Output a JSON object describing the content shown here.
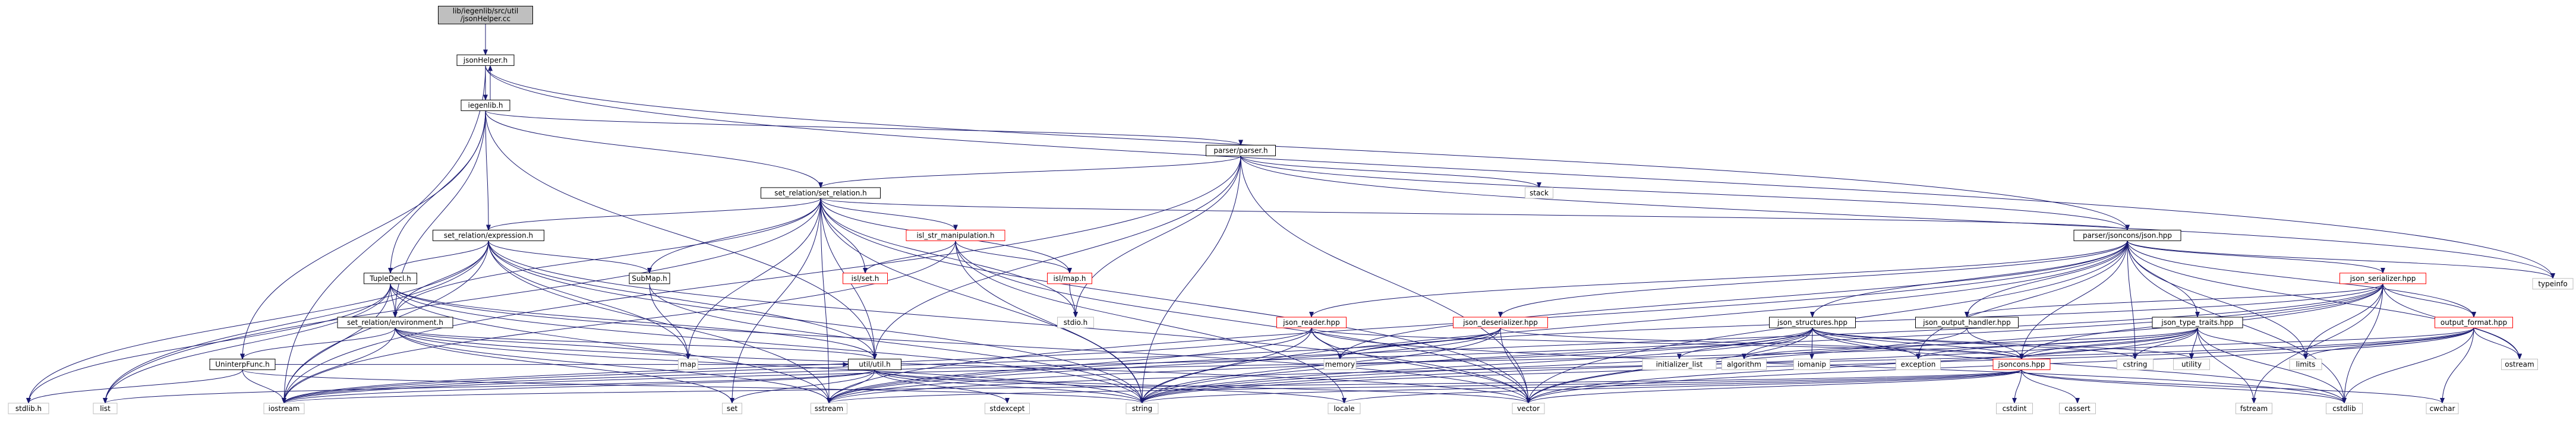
{
  "colors": {
    "edge": "#191970",
    "border_default": "#000000",
    "border_library": "#bfbfbf",
    "border_incomplete": "#ff0000",
    "fill_default": "#ffffff",
    "fill_root": "#bfbfbf",
    "text": "#000000"
  },
  "nodes": [
    {
      "id": "root",
      "label": "lib/iegenlib/src/util\n/jsonHelper.cc",
      "kind": "root"
    },
    {
      "id": "jsonhelper_h",
      "label": "jsonHelper.h",
      "kind": "default"
    },
    {
      "id": "iegenlib_h",
      "label": "iegenlib.h",
      "kind": "default"
    },
    {
      "id": "parser_h",
      "label": "parser/parser.h",
      "kind": "default"
    },
    {
      "id": "set_relation_h",
      "label": "set_relation/set_relation.h",
      "kind": "default"
    },
    {
      "id": "stack",
      "label": "stack",
      "kind": "library"
    },
    {
      "id": "expression_h",
      "label": "set_relation/expression.h",
      "kind": "default"
    },
    {
      "id": "isl_str_manip_h",
      "label": "isl_str_manipulation.h",
      "kind": "incomplete"
    },
    {
      "id": "json_hpp",
      "label": "parser/jsoncons/json.hpp",
      "kind": "default"
    },
    {
      "id": "tupledecl_h",
      "label": "TupleDecl.h",
      "kind": "default"
    },
    {
      "id": "submap_h",
      "label": "SubMap.h",
      "kind": "default"
    },
    {
      "id": "isl_set_h",
      "label": "isl/set.h",
      "kind": "incomplete"
    },
    {
      "id": "isl_map_h",
      "label": "isl/map.h",
      "kind": "incomplete"
    },
    {
      "id": "stdio_h",
      "label": "stdio.h",
      "kind": "library"
    },
    {
      "id": "json_serializer_hpp",
      "label": "json_serializer.hpp",
      "kind": "incomplete"
    },
    {
      "id": "typeinfo",
      "label": "typeinfo",
      "kind": "library"
    },
    {
      "id": "environment_h",
      "label": "set_relation/environment.h",
      "kind": "default"
    },
    {
      "id": "json_reader_hpp",
      "label": "json_reader.hpp",
      "kind": "incomplete"
    },
    {
      "id": "json_deserializer_hpp",
      "label": "json_deserializer.hpp",
      "kind": "incomplete"
    },
    {
      "id": "json_structures_hpp",
      "label": "json_structures.hpp",
      "kind": "default"
    },
    {
      "id": "json_output_handler_hpp",
      "label": "json_output_handler.hpp",
      "kind": "default"
    },
    {
      "id": "json_type_traits_hpp",
      "label": "json_type_traits.hpp",
      "kind": "default"
    },
    {
      "id": "output_format_hpp",
      "label": "output_format.hpp",
      "kind": "incomplete"
    },
    {
      "id": "uninterpfunc_h",
      "label": "UninterpFunc.h",
      "kind": "default"
    },
    {
      "id": "util_h",
      "label": "util/util.h",
      "kind": "default"
    },
    {
      "id": "map",
      "label": "map",
      "kind": "library"
    },
    {
      "id": "memory",
      "label": "memory",
      "kind": "library"
    },
    {
      "id": "initializer_list",
      "label": "initializer_list",
      "kind": "library"
    },
    {
      "id": "algorithm",
      "label": "algorithm",
      "kind": "library"
    },
    {
      "id": "iomanip",
      "label": "iomanip",
      "kind": "library"
    },
    {
      "id": "exception",
      "label": "exception",
      "kind": "library"
    },
    {
      "id": "jsoncons_hpp",
      "label": "jsoncons.hpp",
      "kind": "incomplete"
    },
    {
      "id": "cstring",
      "label": "cstring",
      "kind": "library"
    },
    {
      "id": "utility",
      "label": "utility",
      "kind": "library"
    },
    {
      "id": "limits",
      "label": "limits",
      "kind": "library"
    },
    {
      "id": "ostream",
      "label": "ostream",
      "kind": "library"
    },
    {
      "id": "stdlib_h",
      "label": "stdlib.h",
      "kind": "library"
    },
    {
      "id": "list",
      "label": "list",
      "kind": "library"
    },
    {
      "id": "iostream",
      "label": "iostream",
      "kind": "library"
    },
    {
      "id": "set",
      "label": "set",
      "kind": "library"
    },
    {
      "id": "sstream",
      "label": "sstream",
      "kind": "library"
    },
    {
      "id": "stdexcept",
      "label": "stdexcept",
      "kind": "library"
    },
    {
      "id": "string",
      "label": "string",
      "kind": "library"
    },
    {
      "id": "locale",
      "label": "locale",
      "kind": "library"
    },
    {
      "id": "vector",
      "label": "vector",
      "kind": "library"
    },
    {
      "id": "cstdint",
      "label": "cstdint",
      "kind": "library"
    },
    {
      "id": "cassert",
      "label": "cassert",
      "kind": "library"
    },
    {
      "id": "fstream",
      "label": "fstream",
      "kind": "library"
    },
    {
      "id": "cstdlib",
      "label": "cstdlib",
      "kind": "library"
    },
    {
      "id": "cwchar",
      "label": "cwchar",
      "kind": "library"
    }
  ],
  "edges": [
    [
      "root",
      "jsonhelper_h"
    ],
    [
      "jsonhelper_h",
      "iegenlib_h"
    ],
    [
      "jsonhelper_h",
      "json_hpp"
    ],
    [
      "jsonhelper_h",
      "iostream"
    ],
    [
      "jsonhelper_h",
      "typeinfo"
    ],
    [
      "iegenlib_h",
      "jsonhelper_h"
    ],
    [
      "iegenlib_h",
      "parser_h"
    ],
    [
      "iegenlib_h",
      "set_relation_h"
    ],
    [
      "iegenlib_h",
      "expression_h"
    ],
    [
      "iegenlib_h",
      "tupledecl_h"
    ],
    [
      "iegenlib_h",
      "environment_h"
    ],
    [
      "iegenlib_h",
      "uninterpfunc_h"
    ],
    [
      "iegenlib_h",
      "util_h"
    ],
    [
      "parser_h",
      "set_relation_h"
    ],
    [
      "parser_h",
      "stack"
    ],
    [
      "parser_h",
      "json_hpp"
    ],
    [
      "parser_h",
      "stdio_h"
    ],
    [
      "parser_h",
      "util_h"
    ],
    [
      "parser_h",
      "iostream"
    ],
    [
      "parser_h",
      "string"
    ],
    [
      "parser_h",
      "typeinfo"
    ],
    [
      "parser_h",
      "vector"
    ],
    [
      "set_relation_h",
      "expression_h"
    ],
    [
      "set_relation_h",
      "isl_str_manip_h"
    ],
    [
      "set_relation_h",
      "json_hpp"
    ],
    [
      "set_relation_h",
      "submap_h"
    ],
    [
      "set_relation_h",
      "isl_set_h"
    ],
    [
      "set_relation_h",
      "isl_map_h"
    ],
    [
      "set_relation_h",
      "stdio_h"
    ],
    [
      "set_relation_h",
      "util_h"
    ],
    [
      "set_relation_h",
      "map"
    ],
    [
      "set_relation_h",
      "list"
    ],
    [
      "set_relation_h",
      "set"
    ],
    [
      "set_relation_h",
      "sstream"
    ],
    [
      "set_relation_h",
      "string"
    ],
    [
      "set_relation_h",
      "vector"
    ],
    [
      "set_relation_h",
      "environment_h"
    ],
    [
      "expression_h",
      "tupledecl_h"
    ],
    [
      "expression_h",
      "environment_h"
    ],
    [
      "expression_h",
      "submap_h"
    ],
    [
      "expression_h",
      "util_h"
    ],
    [
      "expression_h",
      "stdlib_h"
    ],
    [
      "expression_h",
      "list"
    ],
    [
      "expression_h",
      "iostream"
    ],
    [
      "expression_h",
      "sstream"
    ],
    [
      "expression_h",
      "string"
    ],
    [
      "expression_h",
      "vector"
    ],
    [
      "expression_h",
      "map"
    ],
    [
      "isl_str_manip_h",
      "isl_set_h"
    ],
    [
      "isl_str_manip_h",
      "isl_map_h"
    ],
    [
      "isl_str_manip_h",
      "iostream"
    ],
    [
      "isl_str_manip_h",
      "string"
    ],
    [
      "isl_str_manip_h",
      "vector"
    ],
    [
      "isl_str_manip_h",
      "locale"
    ],
    [
      "tupledecl_h",
      "environment_h"
    ],
    [
      "tupledecl_h",
      "util_h"
    ],
    [
      "tupledecl_h",
      "stdlib_h"
    ],
    [
      "tupledecl_h",
      "list"
    ],
    [
      "tupledecl_h",
      "iostream"
    ],
    [
      "tupledecl_h",
      "sstream"
    ],
    [
      "tupledecl_h",
      "string"
    ],
    [
      "tupledecl_h",
      "vector"
    ],
    [
      "submap_h",
      "map"
    ],
    [
      "submap_h",
      "string"
    ],
    [
      "isl_map_h",
      "stdio_h"
    ],
    [
      "environment_h",
      "uninterpfunc_h"
    ],
    [
      "environment_h",
      "util_h"
    ],
    [
      "environment_h",
      "map"
    ],
    [
      "environment_h",
      "iostream"
    ],
    [
      "environment_h",
      "sstream"
    ],
    [
      "environment_h",
      "string"
    ],
    [
      "environment_h",
      "vector"
    ],
    [
      "environment_h",
      "set"
    ],
    [
      "uninterpfunc_h",
      "util_h"
    ],
    [
      "uninterpfunc_h",
      "stdlib_h"
    ],
    [
      "uninterpfunc_h",
      "iostream"
    ],
    [
      "uninterpfunc_h",
      "string"
    ],
    [
      "util_h",
      "list"
    ],
    [
      "util_h",
      "iostream"
    ],
    [
      "util_h",
      "set"
    ],
    [
      "util_h",
      "sstream"
    ],
    [
      "util_h",
      "stdexcept"
    ],
    [
      "util_h",
      "string"
    ],
    [
      "util_h",
      "locale"
    ],
    [
      "util_h",
      "vector"
    ],
    [
      "json_hpp",
      "typeinfo"
    ],
    [
      "json_hpp",
      "json_reader_hpp"
    ],
    [
      "json_hpp",
      "json_deserializer_hpp"
    ],
    [
      "json_hpp",
      "json_structures_hpp"
    ],
    [
      "json_hpp",
      "json_output_handler_hpp"
    ],
    [
      "json_hpp",
      "json_type_traits_hpp"
    ],
    [
      "json_hpp",
      "json_serializer_hpp"
    ],
    [
      "json_hpp",
      "output_format_hpp"
    ],
    [
      "json_hpp",
      "jsoncons_hpp"
    ],
    [
      "json_hpp",
      "limits"
    ],
    [
      "json_hpp",
      "ostream"
    ],
    [
      "json_hpp",
      "string"
    ],
    [
      "json_hpp",
      "vector"
    ],
    [
      "json_hpp",
      "exception"
    ],
    [
      "json_hpp",
      "cstdlib"
    ],
    [
      "json_hpp",
      "cstring"
    ],
    [
      "json_hpp",
      "memory"
    ],
    [
      "json_hpp",
      "sstream"
    ],
    [
      "json_reader_hpp",
      "memory"
    ],
    [
      "json_reader_hpp",
      "string"
    ],
    [
      "json_reader_hpp",
      "sstream"
    ],
    [
      "json_reader_hpp",
      "vector"
    ],
    [
      "json_reader_hpp",
      "iostream"
    ],
    [
      "json_reader_hpp",
      "jsoncons_hpp"
    ],
    [
      "json_reader_hpp",
      "cstdlib"
    ],
    [
      "json_deserializer_hpp",
      "string"
    ],
    [
      "json_deserializer_hpp",
      "sstream"
    ],
    [
      "json_deserializer_hpp",
      "vector"
    ],
    [
      "json_deserializer_hpp",
      "memory"
    ],
    [
      "json_deserializer_hpp",
      "jsoncons_hpp"
    ],
    [
      "json_deserializer_hpp",
      "iostream"
    ],
    [
      "json_structures_hpp",
      "string"
    ],
    [
      "json_structures_hpp",
      "vector"
    ],
    [
      "json_structures_hpp",
      "exception"
    ],
    [
      "json_structures_hpp",
      "cstdlib"
    ],
    [
      "json_structures_hpp",
      "cstring"
    ],
    [
      "json_structures_hpp",
      "iostream"
    ],
    [
      "json_structures_hpp",
      "algorithm"
    ],
    [
      "json_structures_hpp",
      "sstream"
    ],
    [
      "json_structures_hpp",
      "iomanip"
    ],
    [
      "json_structures_hpp",
      "utility"
    ],
    [
      "json_structures_hpp",
      "initializer_list"
    ],
    [
      "json_structures_hpp",
      "jsoncons_hpp"
    ],
    [
      "json_output_handler_hpp",
      "string"
    ],
    [
      "json_output_handler_hpp",
      "jsoncons_hpp"
    ],
    [
      "json_type_traits_hpp",
      "string"
    ],
    [
      "json_type_traits_hpp",
      "vector"
    ],
    [
      "json_type_traits_hpp",
      "exception"
    ],
    [
      "json_type_traits_hpp",
      "cstdlib"
    ],
    [
      "json_type_traits_hpp",
      "cstring"
    ],
    [
      "json_type_traits_hpp",
      "utility"
    ],
    [
      "json_type_traits_hpp",
      "algorithm"
    ],
    [
      "json_type_traits_hpp",
      "fstream"
    ],
    [
      "json_type_traits_hpp",
      "limits"
    ],
    [
      "json_type_traits_hpp",
      "jsoncons_hpp"
    ],
    [
      "json_type_traits_hpp",
      "iostream"
    ],
    [
      "json_serializer_hpp",
      "string"
    ],
    [
      "json_serializer_hpp",
      "sstream"
    ],
    [
      "json_serializer_hpp",
      "vector"
    ],
    [
      "json_serializer_hpp",
      "ostream"
    ],
    [
      "json_serializer_hpp",
      "cstdlib"
    ],
    [
      "json_serializer_hpp",
      "limits"
    ],
    [
      "json_serializer_hpp",
      "fstream"
    ],
    [
      "json_serializer_hpp",
      "jsoncons_hpp"
    ],
    [
      "json_serializer_hpp",
      "output_format_hpp"
    ],
    [
      "json_serializer_hpp",
      "json_output_handler_hpp"
    ],
    [
      "json_serializer_hpp",
      "memory"
    ],
    [
      "output_format_hpp",
      "string"
    ],
    [
      "output_format_hpp",
      "sstream"
    ],
    [
      "output_format_hpp",
      "vector"
    ],
    [
      "output_format_hpp",
      "ostream"
    ],
    [
      "output_format_hpp",
      "cstdlib"
    ],
    [
      "output_format_hpp",
      "limits"
    ],
    [
      "output_format_hpp",
      "jsoncons_hpp"
    ],
    [
      "output_format_hpp",
      "cwchar"
    ],
    [
      "jsoncons_hpp",
      "locale"
    ],
    [
      "jsoncons_hpp",
      "string"
    ],
    [
      "jsoncons_hpp",
      "vector"
    ],
    [
      "jsoncons_hpp",
      "cstdlib"
    ],
    [
      "jsoncons_hpp",
      "cwchar"
    ],
    [
      "jsoncons_hpp",
      "cstdint"
    ],
    [
      "jsoncons_hpp",
      "iostream"
    ],
    [
      "jsoncons_hpp",
      "sstream"
    ],
    [
      "jsoncons_hpp",
      "cassert"
    ]
  ]
}
